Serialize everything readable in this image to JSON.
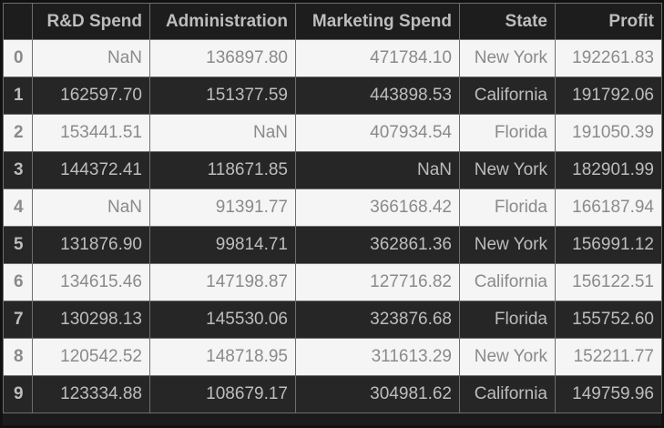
{
  "table": {
    "columns": [
      "R&D Spend",
      "Administration",
      "Marketing Spend",
      "State",
      "Profit"
    ],
    "rows": [
      {
        "index": "0",
        "cells": [
          "NaN",
          "136897.80",
          "471784.10",
          "New York",
          "192261.83"
        ]
      },
      {
        "index": "1",
        "cells": [
          "162597.70",
          "151377.59",
          "443898.53",
          "California",
          "191792.06"
        ]
      },
      {
        "index": "2",
        "cells": [
          "153441.51",
          "NaN",
          "407934.54",
          "Florida",
          "191050.39"
        ]
      },
      {
        "index": "3",
        "cells": [
          "144372.41",
          "118671.85",
          "NaN",
          "New York",
          "182901.99"
        ]
      },
      {
        "index": "4",
        "cells": [
          "NaN",
          "91391.77",
          "366168.42",
          "Florida",
          "166187.94"
        ]
      },
      {
        "index": "5",
        "cells": [
          "131876.90",
          "99814.71",
          "362861.36",
          "New York",
          "156991.12"
        ]
      },
      {
        "index": "6",
        "cells": [
          "134615.46",
          "147198.87",
          "127716.82",
          "California",
          "156122.51"
        ]
      },
      {
        "index": "7",
        "cells": [
          "130298.13",
          "145530.06",
          "323876.68",
          "Florida",
          "155752.60"
        ]
      },
      {
        "index": "8",
        "cells": [
          "120542.52",
          "148718.95",
          "311613.29",
          "New York",
          "152211.77"
        ]
      },
      {
        "index": "9",
        "cells": [
          "123334.88",
          "108679.17",
          "304981.62",
          "California",
          "149759.96"
        ]
      }
    ]
  },
  "colors": {
    "background": "#111111",
    "header_bg": "#1d1d1d",
    "dark_row_bg": "#262626",
    "light_row_bg": "#f5f5f5",
    "dark_row_text": "#bdbdbd",
    "light_row_text": "#8a8a8a",
    "grid_line": "#6e6e6e"
  }
}
